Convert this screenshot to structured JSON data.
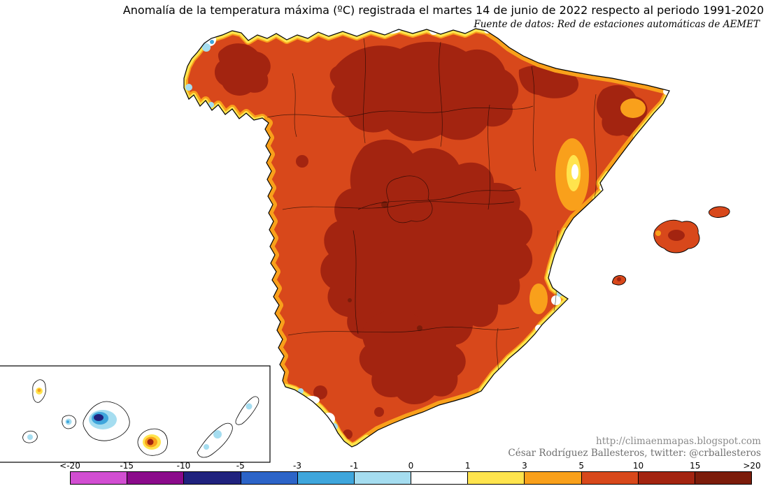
{
  "header": {
    "title": "Anomalía de la temperatura máxima (ºC) registrada el martes 14 de junio de 2022 respecto al periodo 1991-2020",
    "source": "Fuente de datos: Red de estaciones automáticas de AEMET"
  },
  "credits": {
    "url": "http://climaenmapas.blogspot.com",
    "author": "César Rodríguez Ballesteros, twitter: @crballesteros"
  },
  "colorbar": {
    "unit": "ºC",
    "boundary_labels": [
      "<-20",
      "-15",
      "-10",
      "-5",
      "-3",
      "-1",
      "0",
      "1",
      "3",
      "5",
      "10",
      "15",
      ">20"
    ],
    "colors": [
      "#D24ED2",
      "#8B0A8B",
      "#20227E",
      "#2C64C8",
      "#3FA6DC",
      "#A5DDF0",
      "#FFFFFF",
      "#FFE44D",
      "#F9A01B",
      "#D8481B",
      "#A32410",
      "#7C1C0A"
    ]
  },
  "map": {
    "sea_color": "#FFFFFF",
    "coastline_color": "#000000",
    "base_anomaly_color": "#D8481B",
    "hot_anomaly_color": "#A32410"
  }
}
